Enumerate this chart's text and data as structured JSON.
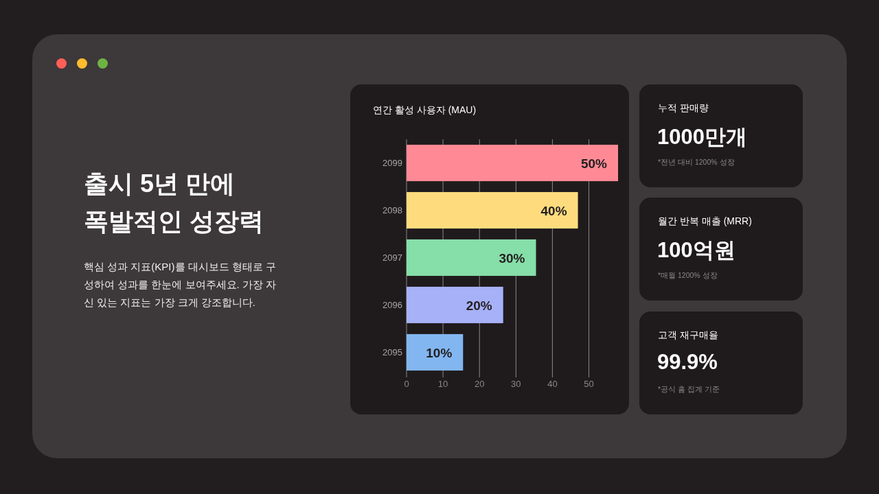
{
  "chart_data": [
    {
      "type": "other",
      "title": "출시 5년 만에\n폭발적인 성장력",
      "subtitle": "핵심 성과 지표(KPI)를 대시보드 형태로 구성하여 성과를 한눈에 보여주세요. 가장 자신 있는 지표는 가장 크게 강조합니다."
    },
    {
      "type": "bar",
      "orientation": "horizontal",
      "title": "연간 활성 사용자 (MAU)",
      "categories": [
        "2099",
        "2098",
        "2097",
        "2096",
        "2095"
      ],
      "values": [
        58,
        47,
        35.5,
        26.5,
        15.5
      ],
      "colors": [
        "#ff8a95",
        "#fedc7e",
        "#86dea8",
        "#a7b1f7",
        "#82b6f0"
      ],
      "annotations": [
        {
          "text": "50%",
          "x": 58,
          "y": "2099"
        },
        {
          "text": "40%",
          "x": 47,
          "y": "2098"
        },
        {
          "text": "30%",
          "x": 35.5,
          "y": "2097"
        },
        {
          "text": "20%",
          "x": 26.5,
          "y": "2096"
        },
        {
          "text": "10%",
          "x": 15.5,
          "y": "2095"
        }
      ],
      "xlim": [
        0,
        58
      ],
      "xticks": [
        0,
        10,
        20,
        30,
        40,
        50
      ],
      "grid": "x"
    },
    {
      "type": "other",
      "title": "누적 판매량",
      "annotations": [
        "1000만개",
        "*전년 대비 1200% 성장"
      ]
    },
    {
      "type": "other",
      "title": "월간 반복 매출 (MRR)",
      "annotations": [
        "100억원",
        "*매월 1200% 성장"
      ]
    },
    {
      "type": "other",
      "title": "고객 재구매율",
      "annotations": [
        "99.9%",
        "*공식 홈 집계 기준"
      ]
    }
  ]
}
